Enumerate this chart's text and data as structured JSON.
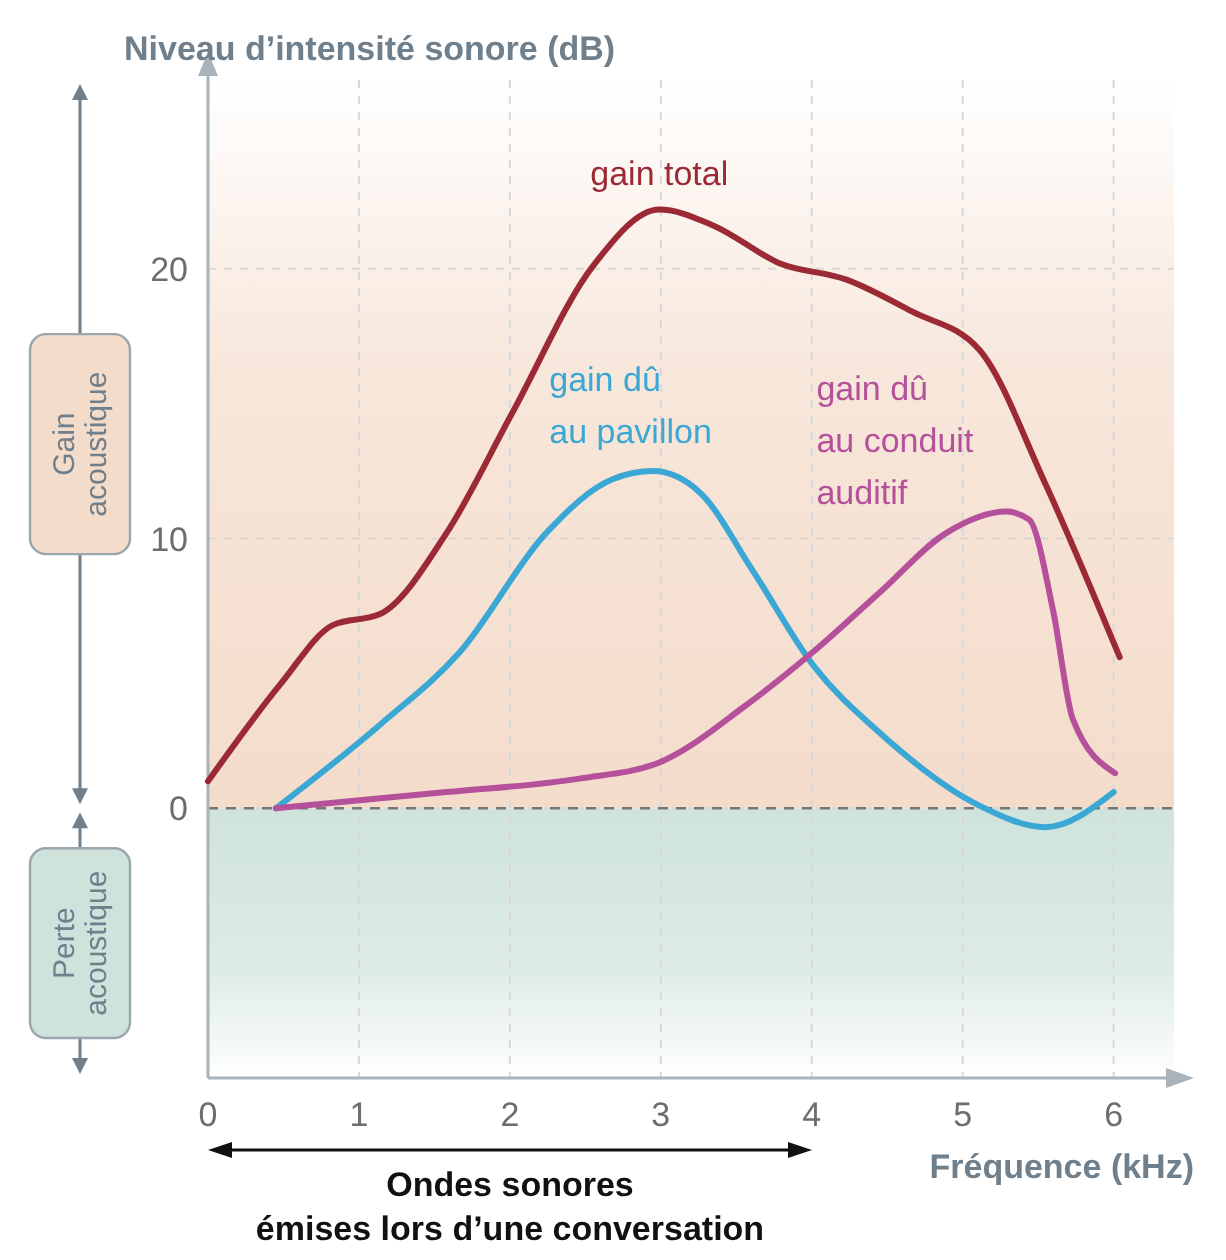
{
  "chart_data": {
    "type": "line",
    "ylabel": "Niveau d’intensité sonore (dB)",
    "xlabel": "Fréquence (kHz)",
    "xlim": [
      0,
      6.4
    ],
    "xticks": [
      0,
      1,
      2,
      3,
      4,
      5,
      6
    ],
    "ylim": [
      -10,
      27
    ],
    "yticks": [
      0,
      10,
      20
    ],
    "grid": true,
    "line_style": "solid",
    "marker": "none",
    "annotations": [
      "Gain\nacoustique",
      "Perte\nacoustique",
      "Ondes sonores\némises lors d’une conversation"
    ],
    "series": [
      {
        "name": "gain total",
        "color": "#9b2a35",
        "x": [
          0,
          0.48,
          0.83,
          1.14,
          1.58,
          2.02,
          2.55,
          2.99,
          3.35,
          3.79,
          4.23,
          4.67,
          5.11,
          5.55,
          6.04
        ],
        "values": [
          1,
          4.6,
          6.8,
          7.2,
          10.2,
          14.7,
          20.1,
          22.2,
          21.6,
          20.2,
          19.6,
          18.4,
          17,
          12,
          5.6
        ]
      },
      {
        "name": "gain dû\nau pavillon",
        "color": "#3aa7d4",
        "x": [
          0.45,
          1.14,
          1.67,
          2.24,
          2.68,
          2.95,
          3.26,
          3.61,
          4.01,
          4.45,
          5.11,
          5.55,
          6.0
        ],
        "values": [
          0,
          3.1,
          5.8,
          10.2,
          12.2,
          12.5,
          11.7,
          8.8,
          5.3,
          2.8,
          0.1,
          -0.7,
          0.6
        ]
      },
      {
        "name": "gain dû\nau conduit\nauditif",
        "color": "#b5509a",
        "x": [
          0.45,
          1.58,
          2.46,
          2.99,
          3.56,
          4.01,
          4.45,
          4.89,
          5.29,
          5.44,
          5.6,
          5.73,
          6.01
        ],
        "values": [
          0,
          0.6,
          1.1,
          1.7,
          3.8,
          5.8,
          8,
          10.2,
          11,
          10.7,
          7.3,
          3.3,
          1.3
        ]
      }
    ],
    "ref_lines": [
      {
        "axis": "y",
        "value": 0,
        "color": "#777777",
        "line_style": "dashed"
      }
    ],
    "bands": [
      {
        "axis": "y",
        "from": 0,
        "to": 27,
        "color": "#f4dccb"
      },
      {
        "axis": "y",
        "from": -10,
        "to": 0,
        "color": "#cfe3dc"
      }
    ]
  }
}
